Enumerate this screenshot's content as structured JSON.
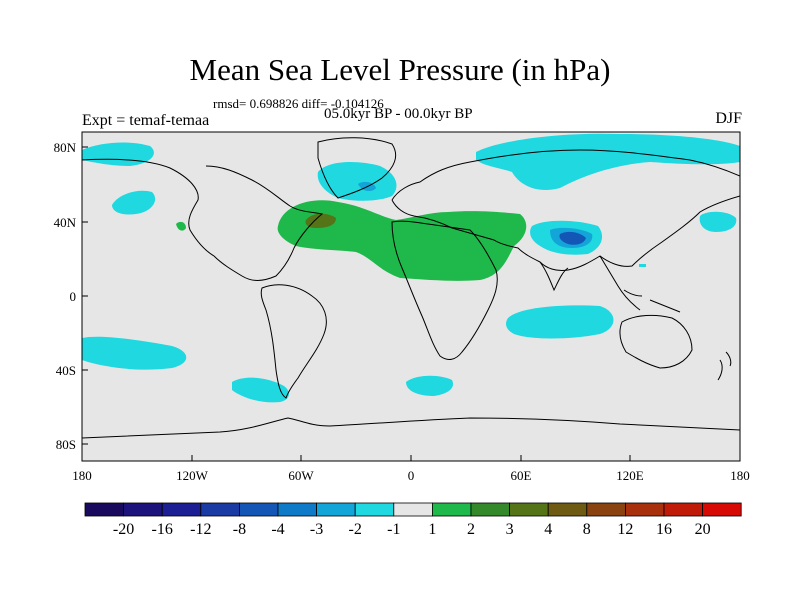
{
  "header": {
    "title": "Mean Sea Level Pressure (in hPa)",
    "stats": "rmsd= 0.698826 diff= -0.104126",
    "period": "05.0kyr BP - 00.0kyr BP",
    "experiment": "Expt = temaf-temaa",
    "season": "DJF"
  },
  "axes": {
    "y_ticks": [
      "80N",
      "40N",
      "0",
      "40S",
      "80S"
    ],
    "x_ticks": [
      "180",
      "120W",
      "60W",
      "0",
      "60E",
      "120E",
      "180"
    ]
  },
  "colorbar": {
    "labels": [
      "-20",
      "-16",
      "-12",
      "-8",
      "-4",
      "-3",
      "-2",
      "-1",
      "1",
      "2",
      "3",
      "4",
      "8",
      "12",
      "16",
      "20"
    ],
    "colors": [
      "#1a0a5e",
      "#1c137c",
      "#1c1f93",
      "#1a3aa4",
      "#1456b6",
      "#0f7ac7",
      "#13a4d8",
      "#20d8e0",
      "#e6e6e6",
      "#1fb84a",
      "#348a2a",
      "#557418",
      "#6e5a12",
      "#8a4210",
      "#a8300c",
      "#c01a08",
      "#d80a06"
    ]
  },
  "colors": {
    "background": "#e6e6e6",
    "coast": "#000000",
    "negative_1": "#20d8e0",
    "negative_2": "#13a4d8",
    "negative_4": "#1456b6",
    "positive_1": "#1fb84a",
    "positive_3": "#557418"
  }
}
